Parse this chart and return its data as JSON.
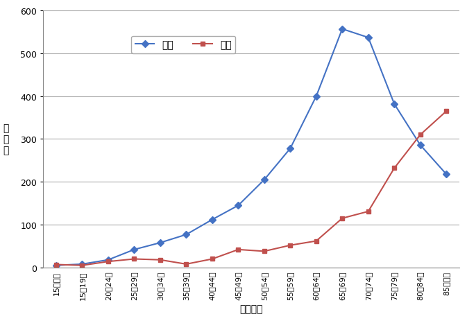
{
  "categories": [
    "15歳未満",
    "15～19歳",
    "20～24歳",
    "25～29歳",
    "30～34歳",
    "35～39歳",
    "40～44歳",
    "45～49歳",
    "50～54歳",
    "55～59歳",
    "60～64歳",
    "65～69歳",
    "70～74歳",
    "75～79歳",
    "80～84歳",
    "85歳以上"
  ],
  "male": [
    5,
    8,
    18,
    42,
    58,
    77,
    112,
    145,
    205,
    278,
    400,
    557,
    537,
    382,
    286,
    218
  ],
  "female": [
    7,
    5,
    14,
    20,
    18,
    8,
    20,
    42,
    38,
    52,
    62,
    115,
    131,
    232,
    310,
    365
  ],
  "male_color": "#4472C4",
  "female_color": "#C0504D",
  "male_label": "男性",
  "female_label": "女性",
  "xlabel": "年齢階級",
  "ylabel": "死\n亡\n数",
  "ylim": [
    0,
    600
  ],
  "yticks": [
    0,
    100,
    200,
    300,
    400,
    500,
    600
  ],
  "background_color": "#FFFFFF",
  "plot_bg_color": "#FFFFFF",
  "grid_color": "#AAAAAA"
}
